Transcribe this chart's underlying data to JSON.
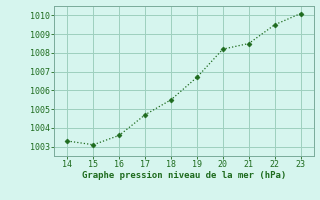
{
  "x": [
    14,
    15,
    16,
    17,
    18,
    19,
    20,
    21,
    22,
    23
  ],
  "y": [
    1003.3,
    1003.1,
    1003.6,
    1004.7,
    1005.5,
    1006.7,
    1008.2,
    1008.5,
    1009.5,
    1010.1
  ],
  "line_color": "#1e6b1e",
  "marker_color": "#1e6b1e",
  "bg_color": "#d6f5ee",
  "grid_color": "#9ecfbe",
  "xlabel": "Graphe pression niveau de la mer (hPa)",
  "xlabel_color": "#1e6b1e",
  "tick_color": "#1e6b1e",
  "xlim": [
    13.5,
    23.5
  ],
  "ylim": [
    1002.5,
    1010.5
  ],
  "xticks": [
    14,
    15,
    16,
    17,
    18,
    19,
    20,
    21,
    22,
    23
  ],
  "yticks": [
    1003,
    1004,
    1005,
    1006,
    1007,
    1008,
    1009,
    1010
  ],
  "spine_color": "#7aaa9a",
  "tick_fontsize": 6.0,
  "xlabel_fontsize": 6.5
}
